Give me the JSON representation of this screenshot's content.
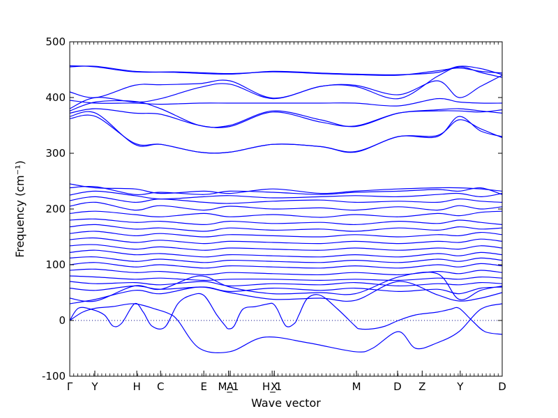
{
  "chart_data": {
    "type": "line",
    "title": "",
    "xlabel": "Wave vector",
    "ylabel": "Frequency (cm⁻¹)",
    "ylim": [
      -100,
      500
    ],
    "yticks": [
      -100,
      0,
      100,
      200,
      300,
      400,
      500
    ],
    "grid": false,
    "legend": "none",
    "line_color": "#0000ff",
    "zero_line_color": "#000080",
    "xlim": [
      0,
      1
    ],
    "high_symmetry_points": [
      {
        "label": "Γ",
        "x": 0.0
      },
      {
        "label": "Y",
        "x": 0.058
      },
      {
        "label": "H",
        "x": 0.155
      },
      {
        "label": "C",
        "x": 0.21
      },
      {
        "label": "E",
        "x": 0.31
      },
      {
        "label": "M_1",
        "x": 0.367
      },
      {
        "label": "A",
        "x": 0.371
      },
      {
        "label": "H_1",
        "x": 0.468
      },
      {
        "label": "X",
        "x": 0.473
      },
      {
        "label": "M",
        "x": 0.663
      },
      {
        "label": "D",
        "x": 0.758
      },
      {
        "label": "Z",
        "x": 0.815
      },
      {
        "label": "Y",
        "x": 0.903
      },
      {
        "label": "D",
        "x": 1.0
      }
    ],
    "series": [
      {
        "x": [
          0.0,
          0.06,
          0.15,
          0.25,
          0.37,
          0.47,
          0.58,
          0.66,
          0.76,
          0.85,
          0.9,
          0.95,
          1.0
        ],
        "y": [
          455,
          456,
          447,
          445,
          442,
          447,
          444,
          442,
          441,
          445,
          456,
          452,
          441
        ]
      },
      {
        "x": [
          0.0,
          0.06,
          0.15,
          0.25,
          0.37,
          0.47,
          0.58,
          0.66,
          0.76,
          0.85,
          0.9,
          0.95,
          1.0
        ],
        "y": [
          457,
          455,
          446,
          446,
          443,
          446,
          443,
          441,
          440,
          448,
          453,
          447,
          444
        ]
      },
      {
        "x": [
          0.0,
          0.06,
          0.15,
          0.21,
          0.3,
          0.37,
          0.47,
          0.58,
          0.66,
          0.76,
          0.85,
          0.9,
          0.95,
          1.0
        ],
        "y": [
          410,
          400,
          422,
          423,
          425,
          430,
          399,
          420,
          422,
          405,
          430,
          400,
          420,
          440
        ]
      },
      {
        "x": [
          0.0,
          0.06,
          0.15,
          0.21,
          0.3,
          0.37,
          0.47,
          0.58,
          0.66,
          0.76,
          0.85,
          0.9,
          0.95,
          1.0
        ],
        "y": [
          380,
          400,
          392,
          398,
          418,
          424,
          398,
          420,
          420,
          398,
          438,
          455,
          445,
          436
        ]
      },
      {
        "x": [
          0.0,
          0.06,
          0.15,
          0.21,
          0.3,
          0.37,
          0.47,
          0.58,
          0.66,
          0.76,
          0.85,
          0.9,
          0.95,
          1.0
        ],
        "y": [
          395,
          390,
          390,
          388,
          390,
          390,
          390,
          390,
          390,
          385,
          398,
          392,
          390,
          390
        ]
      },
      {
        "x": [
          0.0,
          0.06,
          0.15,
          0.21,
          0.3,
          0.37,
          0.47,
          0.58,
          0.66,
          0.76,
          0.85,
          0.9,
          0.95,
          1.0
        ],
        "y": [
          376,
          392,
          393,
          380,
          350,
          350,
          376,
          360,
          348,
          372,
          378,
          380,
          376,
          372
        ]
      },
      {
        "x": [
          0.0,
          0.06,
          0.15,
          0.21,
          0.3,
          0.37,
          0.47,
          0.58,
          0.66,
          0.76,
          0.85,
          0.9,
          0.95,
          1.0
        ],
        "y": [
          372,
          380,
          372,
          370,
          350,
          348,
          374,
          356,
          349,
          372,
          376,
          376,
          374,
          378
        ]
      },
      {
        "x": [
          0.0,
          0.06,
          0.15,
          0.21,
          0.3,
          0.37,
          0.47,
          0.58,
          0.66,
          0.76,
          0.85,
          0.9,
          0.95,
          1.0
        ],
        "y": [
          362,
          366,
          318,
          316,
          302,
          302,
          316,
          312,
          302,
          330,
          330,
          366,
          340,
          330
        ]
      },
      {
        "x": [
          0.0,
          0.06,
          0.15,
          0.21,
          0.3,
          0.37,
          0.47,
          0.58,
          0.66,
          0.76,
          0.85,
          0.9,
          0.95,
          1.0
        ],
        "y": [
          366,
          372,
          316,
          316,
          302,
          302,
          316,
          312,
          303,
          330,
          332,
          360,
          344,
          328
        ]
      },
      {
        "x": [
          0.0,
          0.06,
          0.15,
          0.21,
          0.31,
          0.37,
          0.47,
          0.58,
          0.66,
          0.76,
          0.85,
          0.9,
          0.95,
          1.0
        ],
        "y": [
          245,
          238,
          236,
          228,
          232,
          228,
          236,
          228,
          232,
          236,
          238,
          238,
          236,
          232
        ]
      },
      {
        "x": [
          0.0,
          0.06,
          0.15,
          0.21,
          0.31,
          0.37,
          0.47,
          0.58,
          0.66,
          0.76,
          0.85,
          0.9,
          0.95,
          1.0
        ],
        "y": [
          238,
          240,
          226,
          230,
          226,
          232,
          230,
          226,
          230,
          232,
          235,
          232,
          238,
          226
        ]
      },
      {
        "x": [
          0.0,
          0.06,
          0.15,
          0.21,
          0.31,
          0.37,
          0.47,
          0.58,
          0.66,
          0.76,
          0.85,
          0.9,
          0.95,
          1.0
        ],
        "y": [
          225,
          232,
          224,
          218,
          222,
          224,
          220,
          222,
          224,
          222,
          226,
          228,
          222,
          228
        ]
      },
      {
        "x": [
          0.0,
          0.06,
          0.15,
          0.21,
          0.31,
          0.37,
          0.47,
          0.58,
          0.66,
          0.76,
          0.85,
          0.9,
          0.95,
          1.0
        ],
        "y": [
          215,
          222,
          212,
          218,
          212,
          210,
          214,
          216,
          212,
          214,
          212,
          218,
          214,
          212
        ]
      },
      {
        "x": [
          0.0,
          0.06,
          0.15,
          0.21,
          0.31,
          0.37,
          0.47,
          0.58,
          0.66,
          0.76,
          0.85,
          0.9,
          0.95,
          1.0
        ],
        "y": [
          205,
          212,
          198,
          206,
          198,
          205,
          200,
          202,
          198,
          204,
          198,
          206,
          200,
          204
        ]
      },
      {
        "x": [
          0.0,
          0.06,
          0.15,
          0.21,
          0.31,
          0.37,
          0.47,
          0.58,
          0.66,
          0.76,
          0.85,
          0.9,
          0.95,
          1.0
        ],
        "y": [
          192,
          196,
          190,
          186,
          192,
          186,
          190,
          185,
          190,
          186,
          192,
          188,
          194,
          196
        ]
      },
      {
        "x": [
          0.0,
          0.06,
          0.15,
          0.21,
          0.31,
          0.37,
          0.47,
          0.58,
          0.66,
          0.76,
          0.85,
          0.9,
          0.95,
          1.0
        ],
        "y": [
          180,
          182,
          176,
          178,
          172,
          178,
          174,
          176,
          172,
          178,
          174,
          180,
          176,
          172
        ]
      },
      {
        "x": [
          0.0,
          0.06,
          0.15,
          0.21,
          0.31,
          0.37,
          0.47,
          0.58,
          0.66,
          0.76,
          0.85,
          0.9,
          0.95,
          1.0
        ],
        "y": [
          168,
          172,
          164,
          166,
          160,
          166,
          162,
          164,
          160,
          166,
          162,
          168,
          164,
          166
        ]
      },
      {
        "x": [
          0.0,
          0.06,
          0.15,
          0.21,
          0.31,
          0.37,
          0.47,
          0.58,
          0.66,
          0.76,
          0.85,
          0.9,
          0.95,
          1.0
        ],
        "y": [
          156,
          160,
          152,
          156,
          150,
          154,
          152,
          150,
          154,
          150,
          154,
          152,
          158,
          154
        ]
      },
      {
        "x": [
          0.0,
          0.06,
          0.15,
          0.21,
          0.31,
          0.37,
          0.47,
          0.58,
          0.66,
          0.76,
          0.85,
          0.9,
          0.95,
          1.0
        ],
        "y": [
          145,
          148,
          140,
          144,
          138,
          142,
          140,
          138,
          142,
          138,
          142,
          140,
          146,
          142
        ]
      },
      {
        "x": [
          0.0,
          0.06,
          0.15,
          0.21,
          0.31,
          0.37,
          0.47,
          0.58,
          0.66,
          0.76,
          0.85,
          0.9,
          0.95,
          1.0
        ],
        "y": [
          134,
          136,
          128,
          132,
          126,
          130,
          128,
          126,
          130,
          126,
          130,
          128,
          134,
          130
        ]
      },
      {
        "x": [
          0.0,
          0.06,
          0.15,
          0.21,
          0.31,
          0.37,
          0.47,
          0.58,
          0.66,
          0.76,
          0.85,
          0.9,
          0.95,
          1.0
        ],
        "y": [
          122,
          126,
          118,
          120,
          114,
          118,
          116,
          114,
          118,
          114,
          120,
          116,
          122,
          118
        ]
      },
      {
        "x": [
          0.0,
          0.06,
          0.15,
          0.21,
          0.31,
          0.37,
          0.47,
          0.58,
          0.66,
          0.76,
          0.85,
          0.9,
          0.95,
          1.0
        ],
        "y": [
          112,
          114,
          106,
          110,
          104,
          108,
          106,
          104,
          108,
          104,
          110,
          106,
          112,
          108
        ]
      },
      {
        "x": [
          0.0,
          0.06,
          0.15,
          0.21,
          0.31,
          0.37,
          0.47,
          0.58,
          0.66,
          0.76,
          0.85,
          0.9,
          0.95,
          1.0
        ],
        "y": [
          100,
          104,
          96,
          100,
          94,
          98,
          96,
          94,
          98,
          94,
          100,
          96,
          102,
          98
        ]
      },
      {
        "x": [
          0.0,
          0.06,
          0.15,
          0.21,
          0.31,
          0.37,
          0.47,
          0.58,
          0.66,
          0.76,
          0.85,
          0.9,
          0.95,
          1.0
        ],
        "y": [
          90,
          92,
          86,
          88,
          82,
          86,
          84,
          82,
          86,
          82,
          88,
          84,
          90,
          86
        ]
      },
      {
        "x": [
          0.0,
          0.06,
          0.15,
          0.21,
          0.31,
          0.37,
          0.47,
          0.58,
          0.66,
          0.76,
          0.85,
          0.9,
          0.95,
          1.0
        ],
        "y": [
          80,
          78,
          74,
          76,
          72,
          74,
          74,
          72,
          74,
          72,
          76,
          74,
          78,
          76
        ]
      },
      {
        "x": [
          0.0,
          0.06,
          0.15,
          0.21,
          0.31,
          0.37,
          0.47,
          0.58,
          0.66,
          0.76,
          0.85,
          0.9,
          0.95,
          1.0
        ],
        "y": [
          70,
          66,
          68,
          64,
          70,
          62,
          66,
          64,
          68,
          62,
          66,
          64,
          68,
          66
        ]
      },
      {
        "x": [
          0.0,
          0.06,
          0.15,
          0.21,
          0.31,
          0.37,
          0.47,
          0.58,
          0.66,
          0.76,
          0.85,
          0.9,
          0.95,
          1.0
        ],
        "y": [
          58,
          54,
          62,
          56,
          60,
          52,
          58,
          54,
          58,
          52,
          56,
          48,
          58,
          60
        ]
      },
      {
        "x": [
          0.0,
          0.06,
          0.15,
          0.21,
          0.3,
          0.37,
          0.47,
          0.58,
          0.66,
          0.76,
          0.85,
          0.9,
          0.95,
          1.0
        ],
        "y": [
          40,
          35,
          62,
          56,
          80,
          60,
          48,
          50,
          48,
          78,
          84,
          38,
          54,
          62
        ]
      },
      {
        "x": [
          0.0,
          0.06,
          0.15,
          0.21,
          0.3,
          0.37,
          0.47,
          0.58,
          0.66,
          0.76,
          0.85,
          0.9,
          0.95,
          1.0
        ],
        "y": [
          30,
          38,
          54,
          48,
          60,
          50,
          38,
          40,
          36,
          70,
          46,
          35,
          40,
          50
        ]
      },
      {
        "x": [
          0.0,
          0.02,
          0.05,
          0.08,
          0.1,
          0.12,
          0.15,
          0.17,
          0.19,
          0.22,
          0.25,
          0.28,
          0.31,
          0.34,
          0.36,
          0.367,
          0.38,
          0.4,
          0.43,
          0.46,
          0.47,
          0.48,
          0.5,
          0.52,
          0.53,
          0.55,
          0.58,
          0.62,
          0.66,
          0.67,
          0.7,
          0.73,
          0.76,
          0.8,
          0.85,
          0.88,
          0.9,
          0.93,
          0.96,
          1.0
        ],
        "y": [
          0,
          22,
          20,
          10,
          -10,
          -5,
          30,
          15,
          -10,
          -12,
          30,
          45,
          45,
          10,
          -10,
          -15,
          -10,
          20,
          25,
          30,
          30,
          20,
          -10,
          -5,
          10,
          40,
          45,
          20,
          -10,
          -15,
          -15,
          -10,
          0,
          10,
          15,
          20,
          22,
          0,
          -20,
          -25
        ]
      },
      {
        "x": [
          0.0,
          0.03,
          0.06,
          0.1,
          0.15,
          0.2,
          0.23,
          0.25,
          0.3,
          0.37,
          0.45,
          0.55,
          0.66,
          0.7,
          0.76,
          0.8,
          0.85,
          0.9,
          0.95,
          1.0
        ],
        "y": [
          0,
          15,
          22,
          25,
          30,
          20,
          12,
          0,
          -50,
          -56,
          -30,
          -40,
          -56,
          -50,
          -20,
          -50,
          -40,
          -20,
          20,
          30
        ]
      }
    ]
  }
}
